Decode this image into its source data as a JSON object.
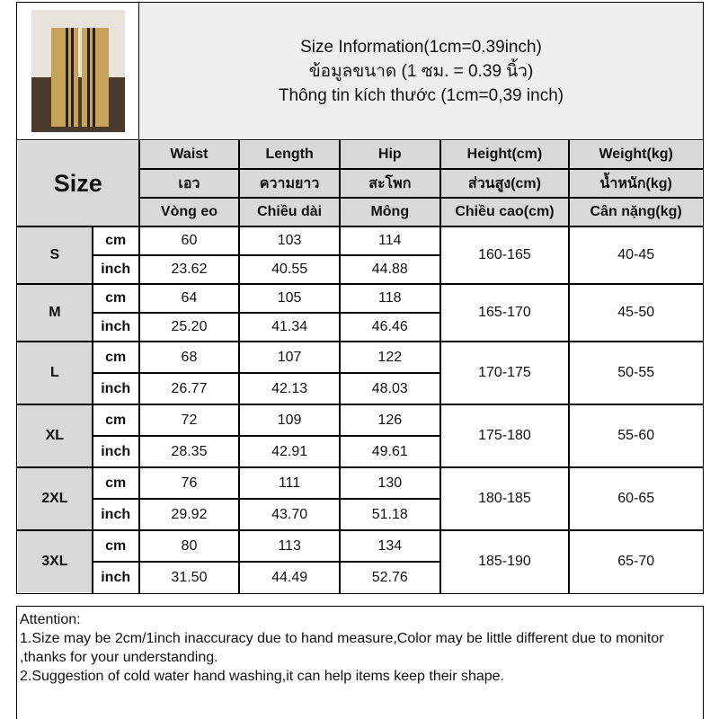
{
  "header": {
    "lines": [
      "Size Information(1cm=0.39inch)",
      "ข้อมูลขนาด (1 ซม. = 0.39 นิ้ว)",
      "Thông tin kích thước (1cm=0,39 inch)"
    ]
  },
  "table": {
    "size_label": "Size",
    "columns": [
      [
        "Waist",
        "Length",
        "Hip",
        "Height(cm)",
        "Weight(kg)"
      ],
      [
        "เอว",
        "ความยาว",
        "สะโพก",
        "ส่วนสูง(cm)",
        "น้ำหนัก(kg)"
      ],
      [
        "Vòng eo",
        "Chiều dài",
        "Mông",
        "Chiều cao(cm)",
        "Cân nặng(kg)"
      ]
    ],
    "unit_cm": "cm",
    "unit_inch": "inch",
    "rows": [
      {
        "size": "S",
        "cm": [
          "60",
          "103",
          "114"
        ],
        "inch": [
          "23.62",
          "40.55",
          "44.88"
        ],
        "height": "160-165",
        "weight": "40-45"
      },
      {
        "size": "M",
        "cm": [
          "64",
          "105",
          "118"
        ],
        "inch": [
          "25.20",
          "41.34",
          "46.46"
        ],
        "height": "165-170",
        "weight": "45-50"
      },
      {
        "size": "L",
        "cm": [
          "68",
          "107",
          "122"
        ],
        "inch": [
          "26.77",
          "42.13",
          "48.03"
        ],
        "height": "170-175",
        "weight": "50-55"
      },
      {
        "size": "XL",
        "cm": [
          "72",
          "109",
          "126"
        ],
        "inch": [
          "28.35",
          "42.91",
          "49.61"
        ],
        "height": "175-180",
        "weight": "55-60"
      },
      {
        "size": "2XL",
        "cm": [
          "76",
          "111",
          "130"
        ],
        "inch": [
          "29.92",
          "43.70",
          "51.18"
        ],
        "height": "180-185",
        "weight": "60-65"
      },
      {
        "size": "3XL",
        "cm": [
          "80",
          "113",
          "134"
        ],
        "inch": [
          "31.50",
          "44.49",
          "52.76"
        ],
        "height": "185-190",
        "weight": "65-70"
      }
    ]
  },
  "attention": {
    "title": "Attention:",
    "lines": [
      "1.Size may be 2cm/1inch inaccuracy due to hand measure,Color may be little different due to monitor ,thanks for your understanding.",
      "2.Suggestion of cold water hand washing,it can help items keep their shape."
    ]
  }
}
